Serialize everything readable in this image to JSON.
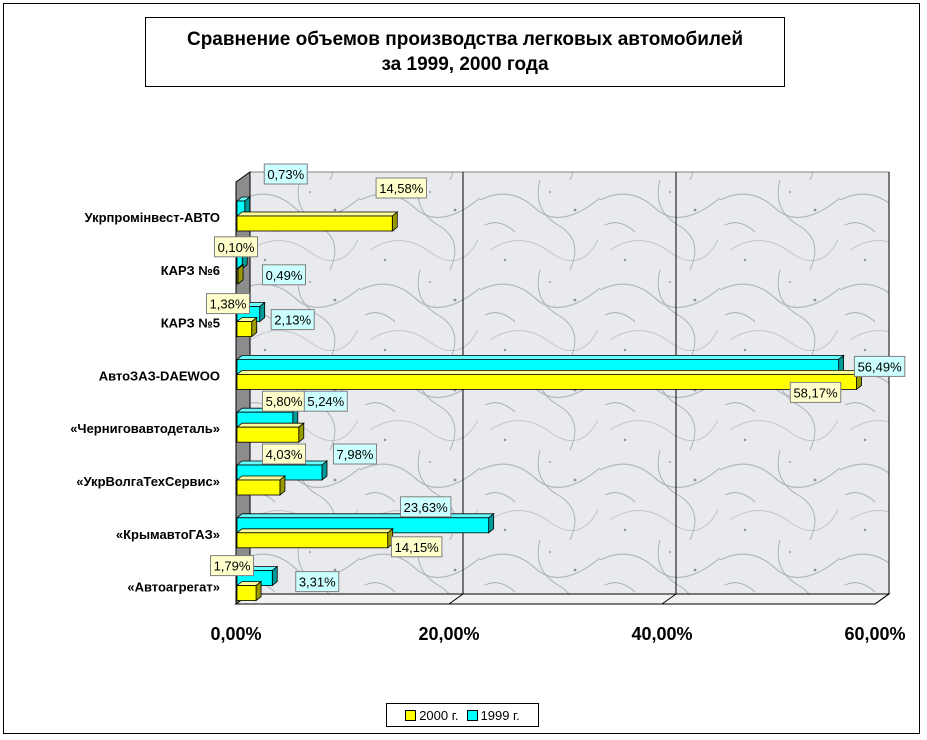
{
  "chart_data": {
    "type": "bar",
    "orientation": "horizontal",
    "title": [
      "Сравнение объемов производства легковых автомобилей",
      "за 1999, 2000 года"
    ],
    "categories": [
      "Укрпромінвест-АВТО",
      "КАРЗ №6",
      "КАРЗ №5",
      "АвтоЗАЗ-DAEWOO",
      "«Черниговавтодеталь»",
      "«УкрВолгаТехСервис»",
      "«КрымавтоГАЗ»",
      "«Автоагрегат»"
    ],
    "series": [
      {
        "name": "1999 г.",
        "color": "#00ffff",
        "values": [
          0.73,
          0.49,
          2.13,
          56.49,
          5.24,
          7.98,
          23.63,
          3.31
        ],
        "labels": [
          "0,73%",
          "0,49%",
          "2,13%",
          "56,49%",
          "5,24%",
          "7,98%",
          "23,63%",
          "3,31%"
        ]
      },
      {
        "name": "2000 г.",
        "color": "#ffff00",
        "values": [
          14.58,
          0.1,
          1.38,
          58.17,
          5.8,
          4.03,
          14.15,
          1.79
        ],
        "labels": [
          "14,58%",
          "0,10%",
          "1,38%",
          "58,17%",
          "5,80%",
          "4,03%",
          "14,15%",
          "1,79%"
        ]
      }
    ],
    "xlim": [
      0,
      60
    ],
    "xticks": [
      0,
      20,
      40,
      60
    ],
    "xtick_labels": [
      "0,00%",
      "20,00%",
      "40,00%",
      "60,00%"
    ],
    "grid": true,
    "legend_position": "bottom",
    "legend": [
      "2000 г.",
      "1999 г."
    ],
    "label_fill_1999": "#ccffff",
    "label_fill_2000": "#ffffcc",
    "plot_background": "marble-grey"
  }
}
